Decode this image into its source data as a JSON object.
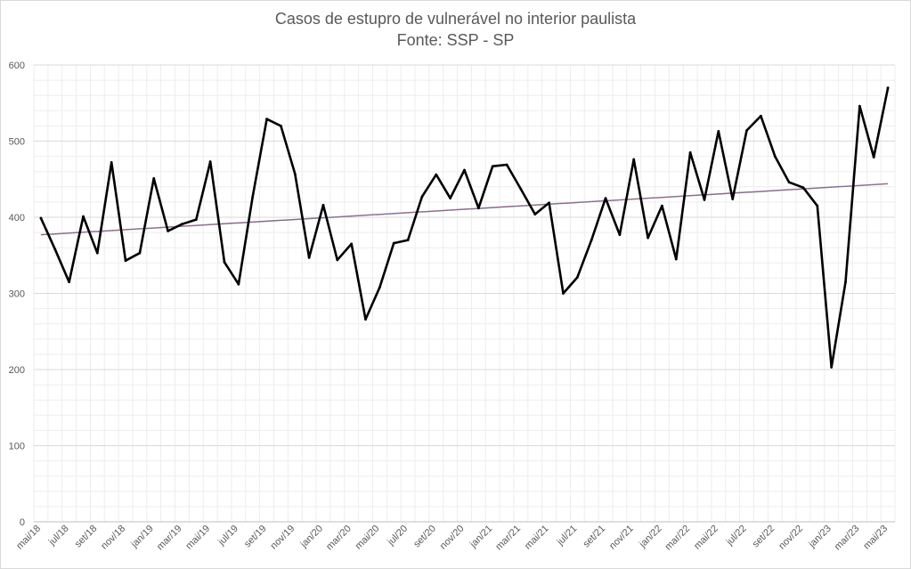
{
  "chart_data": {
    "type": "line",
    "title": "Casos de estupro de vulnerável no interior paulista",
    "subtitle": "Fonte: SSP - SP",
    "ylim": [
      0,
      600
    ],
    "yticks": [
      0,
      100,
      200,
      300,
      400,
      500,
      600
    ],
    "x_tick_labels": [
      "mai/18",
      "jul/18",
      "set/18",
      "nov/18",
      "jan/19",
      "mar/19",
      "mai/19",
      "jul/19",
      "set/19",
      "nov/19",
      "jan/20",
      "mar/20",
      "mai/20",
      "jul/20",
      "set/20",
      "nov/20",
      "jan/21",
      "mar/21",
      "mai/21",
      "jul/21",
      "set/21",
      "nov/21",
      "jan/22",
      "mar/22",
      "mai/22",
      "jul/22",
      "set/22",
      "nov/22",
      "jan/23",
      "mar/23",
      "mai/23"
    ],
    "x": [
      "mai/18",
      "jun/18",
      "jul/18",
      "ago/18",
      "set/18",
      "out/18",
      "nov/18",
      "dez/18",
      "jan/19",
      "fev/19",
      "mar/19",
      "abr/19",
      "mai/19",
      "jun/19",
      "jul/19",
      "ago/19",
      "set/19",
      "out/19",
      "nov/19",
      "dez/19",
      "jan/20",
      "fev/20",
      "mar/20",
      "abr/20",
      "mai/20",
      "jun/20",
      "jul/20",
      "ago/20",
      "set/20",
      "out/20",
      "nov/20",
      "dez/20",
      "jan/21",
      "fev/21",
      "mar/21",
      "abr/21",
      "mai/21",
      "jun/21",
      "jul/21",
      "ago/21",
      "set/21",
      "out/21",
      "nov/21",
      "dez/21",
      "jan/22",
      "fev/22",
      "mar/22",
      "abr/22",
      "mai/22",
      "jun/22",
      "jul/22",
      "ago/22",
      "set/22",
      "out/22",
      "nov/22",
      "dez/22",
      "jan/23",
      "fev/23",
      "mar/23",
      "abr/23",
      "mai/23"
    ],
    "series": [
      {
        "values": [
          399,
          358,
          315,
          401,
          353,
          472,
          343,
          353,
          451,
          382,
          391,
          397,
          473,
          341,
          312,
          427,
          529,
          520,
          457,
          347,
          416,
          344,
          365,
          266,
          308,
          366,
          370,
          427,
          456,
          425,
          462,
          412,
          467,
          469,
          437,
          404,
          419,
          300,
          321,
          370,
          425,
          377,
          476,
          373,
          415,
          345,
          485,
          423,
          513,
          424,
          514,
          533,
          480,
          446,
          439,
          415,
          203,
          315,
          546,
          479,
          570
        ],
        "color": "#000000"
      }
    ],
    "trendline": {
      "type": "linear",
      "start": 377,
      "end": 444,
      "colors": [
        "#c0504d",
        "#4f81bd"
      ]
    },
    "grid": true,
    "legend": "none"
  }
}
